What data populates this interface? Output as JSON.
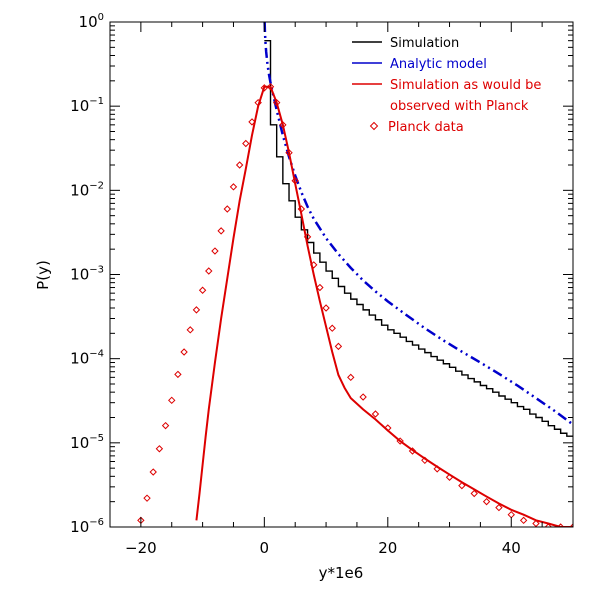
{
  "chart_data": {
    "type": "line",
    "xlabel": "y*1e6",
    "ylabel": "P(y)",
    "xlim": [
      -25,
      50
    ],
    "ylim": [
      1e-06,
      1
    ],
    "yscale": "log",
    "grid": false,
    "legend_placement": "top-right",
    "x_ticks": [
      {
        "value": -20,
        "label": "−20"
      },
      {
        "value": 0,
        "label": "0"
      },
      {
        "value": 20,
        "label": "20"
      },
      {
        "value": 40,
        "label": "40"
      }
    ],
    "y_ticks": [
      {
        "value": 1e-06,
        "base": "10",
        "exp": "−6"
      },
      {
        "value": 1e-05,
        "base": "10",
        "exp": "−5"
      },
      {
        "value": 0.0001,
        "base": "10",
        "exp": "−4"
      },
      {
        "value": 0.001,
        "base": "10",
        "exp": "−3"
      },
      {
        "value": 0.01,
        "base": "10",
        "exp": "−2"
      },
      {
        "value": 0.1,
        "base": "10",
        "exp": "−1"
      },
      {
        "value": 1,
        "base": "10",
        "exp": "0"
      }
    ],
    "legend": [
      {
        "lines": [
          "Simulation"
        ],
        "color": "#000000",
        "marker": "line"
      },
      {
        "lines": [
          "Analytic model"
        ],
        "color": "#0000cc",
        "marker": "line"
      },
      {
        "lines": [
          "Simulation as would be",
          "observed with Planck"
        ],
        "color": "#dd0000",
        "marker": "line"
      },
      {
        "lines": [
          "Planck data"
        ],
        "color": "#dd0000",
        "marker": "diamond"
      }
    ],
    "series": [
      {
        "name": "Simulation",
        "color": "#000000",
        "style": "step",
        "x": [
          0,
          1,
          2,
          3,
          4,
          5,
          6,
          7,
          8,
          9,
          10,
          11,
          12,
          13,
          14,
          15,
          16,
          17,
          18,
          19,
          20,
          21,
          22,
          23,
          24,
          25,
          26,
          27,
          28,
          29,
          30,
          31,
          32,
          33,
          34,
          35,
          36,
          37,
          38,
          39,
          40,
          41,
          42,
          43,
          44,
          45,
          46,
          47,
          48,
          49,
          50
        ],
        "y": [
          0.6,
          0.06,
          0.025,
          0.012,
          0.0075,
          0.0048,
          0.0034,
          0.0024,
          0.0018,
          0.0014,
          0.0011,
          0.0009,
          0.00072,
          0.0006,
          0.00051,
          0.00044,
          0.00038,
          0.00033,
          0.00029,
          0.00025,
          0.00022,
          0.0002,
          0.00018,
          0.00016,
          0.000145,
          0.00013,
          0.000118,
          0.000106,
          9.6e-05,
          8.7e-05,
          7.9e-05,
          7.1e-05,
          6.4e-05,
          5.8e-05,
          5.3e-05,
          4.8e-05,
          4.4e-05,
          4e-05,
          3.6e-05,
          3.3e-05,
          3e-05,
          2.7e-05,
          2.5e-05,
          2.2e-05,
          2e-05,
          1.8e-05,
          1.6e-05,
          1.45e-05,
          1.3e-05,
          1.2e-05,
          1.1e-05
        ]
      },
      {
        "name": "Analytic model",
        "color": "#0000cc",
        "style": "dash-dot-dot",
        "x": [
          0.05,
          0.1,
          0.2,
          0.3,
          0.5,
          0.7,
          1,
          1.5,
          2,
          3,
          4,
          5,
          6,
          7,
          8,
          10,
          12,
          14,
          16,
          18,
          20,
          23,
          26,
          29,
          32,
          35,
          38,
          41,
          44,
          47,
          50
        ],
        "y": [
          1.0,
          0.75,
          0.55,
          0.44,
          0.32,
          0.25,
          0.19,
          0.13,
          0.09,
          0.045,
          0.025,
          0.015,
          0.0095,
          0.0064,
          0.0046,
          0.0027,
          0.00175,
          0.0012,
          0.00085,
          0.00063,
          0.00048,
          0.00033,
          0.00023,
          0.000165,
          0.000121,
          9e-05,
          6.6e-05,
          4.8e-05,
          3.4e-05,
          2.4e-05,
          1.65e-05
        ]
      },
      {
        "name": "Simulation as would be observed with Planck",
        "color": "#dd0000",
        "style": "line",
        "x": [
          -11,
          -10.5,
          -10,
          -9.5,
          -9,
          -8,
          -7,
          -6,
          -5,
          -4,
          -3,
          -2,
          -1,
          0,
          1,
          2,
          3,
          4,
          5,
          6,
          7,
          8,
          9,
          10,
          11,
          12,
          13,
          14,
          16,
          18,
          20,
          22,
          24,
          26,
          28,
          30,
          32,
          34,
          36,
          38,
          40,
          42,
          44,
          46,
          48,
          50
        ],
        "y": [
          1.2e-06,
          2.5e-06,
          5.5e-06,
          1.2e-05,
          2.5e-05,
          9e-05,
          0.0003,
          0.0009,
          0.0027,
          0.0075,
          0.018,
          0.045,
          0.1,
          0.17,
          0.17,
          0.11,
          0.06,
          0.028,
          0.012,
          0.0052,
          0.0022,
          0.001,
          0.00048,
          0.00024,
          0.00012,
          6.4e-05,
          4.5e-05,
          3.4e-05,
          2.5e-05,
          1.9e-05,
          1.4e-05,
          1.05e-05,
          8.2e-06,
          6.5e-06,
          5.2e-06,
          4.2e-06,
          3.4e-06,
          2.8e-06,
          2.3e-06,
          1.9e-06,
          1.6e-06,
          1.4e-06,
          1.2e-06,
          1.1e-06,
          1e-06,
          1e-06
        ]
      },
      {
        "name": "Planck data",
        "color": "#dd0000",
        "style": "diamond",
        "x": [
          -20,
          -19,
          -18,
          -17,
          -16,
          -15,
          -14,
          -13,
          -12,
          -11,
          -10,
          -9,
          -8,
          -7,
          -6,
          -5,
          -4,
          -3,
          -2,
          -1,
          0,
          1,
          2,
          3,
          4,
          5,
          6,
          7,
          8,
          9,
          10,
          11,
          12,
          14,
          16,
          18,
          20,
          22,
          24,
          26,
          28,
          30,
          32,
          34,
          36,
          38,
          40,
          42,
          44,
          46,
          48,
          50
        ],
        "y": [
          1.2e-06,
          2.2e-06,
          4.5e-06,
          8.5e-06,
          1.6e-05,
          3.2e-05,
          6.5e-05,
          0.00012,
          0.00022,
          0.00038,
          0.00065,
          0.0011,
          0.0019,
          0.0033,
          0.006,
          0.011,
          0.02,
          0.036,
          0.065,
          0.11,
          0.165,
          0.17,
          0.11,
          0.06,
          0.028,
          0.013,
          0.006,
          0.0028,
          0.0013,
          0.0007,
          0.0004,
          0.00023,
          0.00014,
          6e-05,
          3.5e-05,
          2.2e-05,
          1.5e-05,
          1.05e-05,
          8e-06,
          6.2e-06,
          4.9e-06,
          3.9e-06,
          3.1e-06,
          2.5e-06,
          2e-06,
          1.7e-06,
          1.4e-06,
          1.2e-06,
          1.1e-06,
          1e-06,
          1e-06,
          1e-06
        ]
      }
    ]
  }
}
